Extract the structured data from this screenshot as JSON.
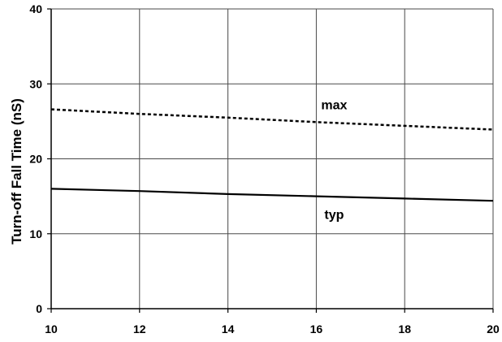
{
  "chart_data": {
    "type": "line",
    "title": "",
    "xlabel": "",
    "ylabel": "Turn-off Fall Time (nS)",
    "xlim": [
      10,
      20
    ],
    "ylim": [
      0,
      40
    ],
    "xticks": [
      10,
      12,
      14,
      16,
      18,
      20
    ],
    "yticks": [
      0,
      10,
      20,
      30,
      40
    ],
    "grid": true,
    "legend": "none",
    "series": [
      {
        "name": "max",
        "style": "dotted",
        "color": "#000000",
        "x": [
          10,
          12,
          14,
          16,
          18,
          20
        ],
        "y": [
          26.6,
          26.0,
          25.5,
          24.9,
          24.4,
          23.9
        ]
      },
      {
        "name": "typ",
        "style": "solid",
        "color": "#000000",
        "x": [
          10,
          12,
          14,
          16,
          18,
          20
        ],
        "y": [
          16.0,
          15.7,
          15.3,
          15.0,
          14.7,
          14.4
        ]
      }
    ]
  }
}
